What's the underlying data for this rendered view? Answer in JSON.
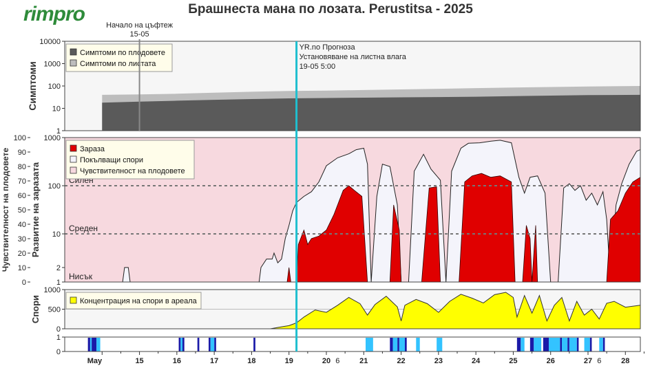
{
  "header": {
    "logo": "rimpro",
    "title": "Брашнеста мана по лозата.  Perustitsa - 2025"
  },
  "annotations": {
    "bloom_line1": "Начало на цъфтеж",
    "bloom_line2": "15-05",
    "forecast_line1": "YR.no Прогноза",
    "forecast_line2": "Установяване на листна влага",
    "forecast_line3": "19-05 5:00"
  },
  "colors": {
    "fruit_symptoms": "#5a5a5a",
    "leaf_symptoms": "#bdbdbd",
    "infection": "#e00000",
    "spores_released": "#f4f4fb",
    "susceptibility": "#f7d9df",
    "spore_concentration": "#ffff00",
    "now_line": "#1fbfcf",
    "wet_dark": "#1a1aa8",
    "wet_light": "#33c3ff"
  },
  "chart_data": [
    {
      "id": "symptoms",
      "type": "area",
      "ylabel": "Симптоми",
      "yscale": "log",
      "ylim": [
        1,
        10000
      ],
      "yticks": [
        "1",
        "10",
        "100",
        "1000",
        "10000"
      ],
      "legend": [
        "Симптоми по плодовете",
        "Симптоми по листата"
      ],
      "legend_position": "top-left",
      "x": [
        14.0,
        15.0,
        16.0,
        17.0,
        18.0,
        19.0,
        20.0,
        21.0,
        22.0,
        23.0,
        24.0,
        25.0,
        26.0,
        27.0,
        28.4
      ],
      "series": [
        {
          "name": "Симптоми по листата",
          "values": [
            40,
            42,
            45,
            50,
            55,
            60,
            62,
            66,
            70,
            75,
            80,
            85,
            90,
            95,
            100
          ]
        },
        {
          "name": "Симптоми по плодовете",
          "values": [
            18,
            20,
            22,
            24,
            26,
            28,
            29,
            30,
            31,
            32,
            33,
            35,
            37,
            39,
            40
          ]
        }
      ]
    },
    {
      "id": "risk",
      "type": "area",
      "ylabel": "Развитие на заразата",
      "ylabel2": "Чувствителност на плодовете",
      "yscale": "log",
      "ylim": [
        1,
        1000
      ],
      "yticks": [
        "1",
        "2",
        "10",
        "100",
        "1000"
      ],
      "yticks2": [
        "0",
        "10",
        "20",
        "30",
        "40",
        "50",
        "60",
        "70",
        "80",
        "90",
        "100"
      ],
      "thresholds": [
        {
          "label": "Силен",
          "value": 100
        },
        {
          "label": "Среден",
          "value": 10
        },
        {
          "label": "Нисък",
          "value": 1
        }
      ],
      "fruit_susceptibility_pct": 100,
      "legend": [
        "Зараза",
        "Покълващи спори",
        "Чувствителност на плодовете"
      ],
      "legend_position": "top-left",
      "spores_released": [
        [
          14.0,
          1
        ],
        [
          14.55,
          1
        ],
        [
          14.6,
          2
        ],
        [
          14.7,
          2
        ],
        [
          14.75,
          1
        ],
        [
          18.2,
          1
        ],
        [
          18.25,
          2
        ],
        [
          18.4,
          3
        ],
        [
          18.55,
          3
        ],
        [
          18.6,
          4
        ],
        [
          18.7,
          2.5
        ],
        [
          18.8,
          3
        ],
        [
          18.9,
          8
        ],
        [
          19.0,
          15
        ],
        [
          19.1,
          30
        ],
        [
          19.2,
          45
        ],
        [
          19.4,
          60
        ],
        [
          19.6,
          75
        ],
        [
          19.8,
          120
        ],
        [
          20.0,
          260
        ],
        [
          20.3,
          380
        ],
        [
          20.6,
          460
        ],
        [
          20.8,
          560
        ],
        [
          21.0,
          600
        ],
        [
          21.1,
          280
        ],
        [
          21.2,
          1
        ],
        [
          21.35,
          60
        ],
        [
          21.5,
          280
        ],
        [
          21.7,
          250
        ],
        [
          21.9,
          40
        ],
        [
          22.0,
          1
        ],
        [
          22.2,
          1
        ],
        [
          22.35,
          200
        ],
        [
          22.6,
          450
        ],
        [
          22.8,
          220
        ],
        [
          23.05,
          130
        ],
        [
          23.2,
          1
        ],
        [
          23.35,
          200
        ],
        [
          23.6,
          600
        ],
        [
          23.8,
          760
        ],
        [
          24.1,
          780
        ],
        [
          24.4,
          840
        ],
        [
          24.65,
          880
        ],
        [
          24.95,
          780
        ],
        [
          25.15,
          150
        ],
        [
          25.3,
          70
        ],
        [
          25.45,
          150
        ],
        [
          25.65,
          160
        ],
        [
          25.85,
          70
        ],
        [
          26.0,
          1
        ],
        [
          26.2,
          1
        ],
        [
          26.35,
          90
        ],
        [
          26.5,
          110
        ],
        [
          26.65,
          80
        ],
        [
          26.8,
          100
        ],
        [
          26.95,
          50
        ],
        [
          27.1,
          70
        ],
        [
          27.25,
          40
        ],
        [
          27.4,
          75
        ],
        [
          27.5,
          20
        ],
        [
          27.6,
          1
        ],
        [
          27.75,
          40
        ],
        [
          27.9,
          110
        ],
        [
          28.1,
          280
        ],
        [
          28.3,
          520
        ],
        [
          28.4,
          560
        ]
      ],
      "infection": [
        [
          18.95,
          1
        ],
        [
          19.0,
          2
        ],
        [
          19.05,
          1
        ],
        [
          19.2,
          1
        ],
        [
          19.25,
          6
        ],
        [
          19.4,
          12
        ],
        [
          19.5,
          6
        ],
        [
          19.6,
          8
        ],
        [
          19.8,
          9
        ],
        [
          20.0,
          12
        ],
        [
          20.2,
          25
        ],
        [
          20.45,
          80
        ],
        [
          20.6,
          100
        ],
        [
          20.75,
          80
        ],
        [
          20.95,
          60
        ],
        [
          21.1,
          1
        ],
        [
          21.7,
          1
        ],
        [
          21.8,
          40
        ],
        [
          21.95,
          12
        ],
        [
          22.0,
          1
        ],
        [
          22.55,
          1
        ],
        [
          22.75,
          90
        ],
        [
          22.95,
          95
        ],
        [
          23.05,
          1
        ],
        [
          23.55,
          1
        ],
        [
          23.7,
          120
        ],
        [
          23.9,
          160
        ],
        [
          24.15,
          180
        ],
        [
          24.4,
          150
        ],
        [
          24.65,
          160
        ],
        [
          24.95,
          120
        ],
        [
          25.05,
          1
        ],
        [
          25.25,
          1
        ],
        [
          25.35,
          15
        ],
        [
          25.45,
          8
        ],
        [
          25.5,
          1
        ],
        [
          25.6,
          15
        ],
        [
          25.65,
          1
        ],
        [
          26.05,
          1
        ],
        [
          26.15,
          1
        ],
        [
          26.2,
          1
        ],
        [
          27.5,
          1
        ],
        [
          27.6,
          20
        ],
        [
          27.8,
          30
        ],
        [
          28.0,
          70
        ],
        [
          28.2,
          120
        ],
        [
          28.4,
          150
        ]
      ]
    },
    {
      "id": "spores",
      "type": "area",
      "ylabel": "Спори",
      "ylim": [
        0,
        1000
      ],
      "yticks": [
        "0",
        "500",
        "1000"
      ],
      "legend": [
        "Концентрация на спори в ареала"
      ],
      "legend_position": "top-left",
      "x": [
        18.5,
        18.8,
        19.0,
        19.2,
        19.4,
        19.7,
        20.0,
        20.3,
        20.6,
        20.9,
        21.1,
        21.3,
        21.6,
        21.9,
        22.0,
        22.1,
        22.4,
        22.7,
        23.0,
        23.3,
        23.6,
        23.9,
        24.2,
        24.5,
        24.8,
        25.0,
        25.1,
        25.3,
        25.5,
        25.7,
        25.9,
        26.1,
        26.3,
        26.5,
        26.7,
        26.9,
        27.1,
        27.3,
        27.5,
        27.7,
        28.0,
        28.4
      ],
      "values": [
        0,
        50,
        80,
        150,
        300,
        480,
        420,
        600,
        800,
        640,
        350,
        620,
        830,
        560,
        200,
        600,
        750,
        640,
        420,
        700,
        880,
        780,
        660,
        870,
        930,
        800,
        300,
        850,
        400,
        850,
        200,
        600,
        800,
        200,
        700,
        350,
        500,
        250,
        650,
        700,
        550,
        600
      ]
    },
    {
      "id": "wetness",
      "type": "bar",
      "ylim": [
        0,
        1
      ],
      "yticks": [
        "0",
        "1"
      ],
      "series": [
        {
          "name": "dark",
          "ranges": [
            [
              13.62,
              13.68
            ],
            [
              13.72,
              13.85
            ],
            [
              16.05,
              16.1
            ],
            [
              16.15,
              16.2
            ],
            [
              16.55,
              16.6
            ],
            [
              16.85,
              16.9
            ],
            [
              17.0,
              17.05
            ],
            [
              18.05,
              18.1
            ],
            [
              21.7,
              21.78
            ],
            [
              21.9,
              21.95
            ],
            [
              22.1,
              22.15
            ],
            [
              25.1,
              25.2
            ],
            [
              25.45,
              25.55
            ],
            [
              25.8,
              25.95
            ],
            [
              26.25,
              26.3
            ],
            [
              26.45,
              26.5
            ],
            [
              26.7,
              26.75
            ],
            [
              27.05,
              27.1
            ],
            [
              27.4,
              27.45
            ]
          ]
        },
        {
          "name": "light",
          "ranges": [
            [
              13.68,
              13.72
            ],
            [
              13.85,
              13.95
            ],
            [
              16.1,
              16.15
            ],
            [
              16.9,
              17.0
            ],
            [
              21.05,
              21.25
            ],
            [
              21.78,
              21.9
            ],
            [
              21.95,
              22.1
            ],
            [
              22.4,
              22.5
            ],
            [
              22.95,
              23.1
            ],
            [
              25.2,
              25.3
            ],
            [
              25.55,
              25.75
            ],
            [
              25.95,
              26.25
            ],
            [
              26.3,
              26.45
            ],
            [
              26.5,
              26.7
            ],
            [
              26.9,
              27.05
            ],
            [
              27.3,
              27.4
            ]
          ]
        }
      ]
    }
  ],
  "x_axis": {
    "labels": [
      {
        "x": 13.8,
        "text": "May"
      },
      {
        "x": 15,
        "text": "15"
      },
      {
        "x": 16,
        "text": "16"
      },
      {
        "x": 17,
        "text": "17"
      },
      {
        "x": 18,
        "text": "18"
      },
      {
        "x": 19,
        "text": "19"
      },
      {
        "x": 20,
        "text": "20"
      },
      {
        "x": 21,
        "text": "21"
      },
      {
        "x": 22,
        "text": "22"
      },
      {
        "x": 23,
        "text": "23"
      },
      {
        "x": 24,
        "text": "24"
      },
      {
        "x": 25,
        "text": "25"
      },
      {
        "x": 26,
        "text": "26"
      },
      {
        "x": 27,
        "text": "27"
      },
      {
        "x": 28,
        "text": "28"
      }
    ],
    "minor_labels": [
      {
        "x": 20.3,
        "text": "6"
      },
      {
        "x": 27.3,
        "text": "6"
      }
    ],
    "range": [
      13.0,
      28.4
    ],
    "bloom_x": 15.0,
    "now_x": 19.2
  }
}
